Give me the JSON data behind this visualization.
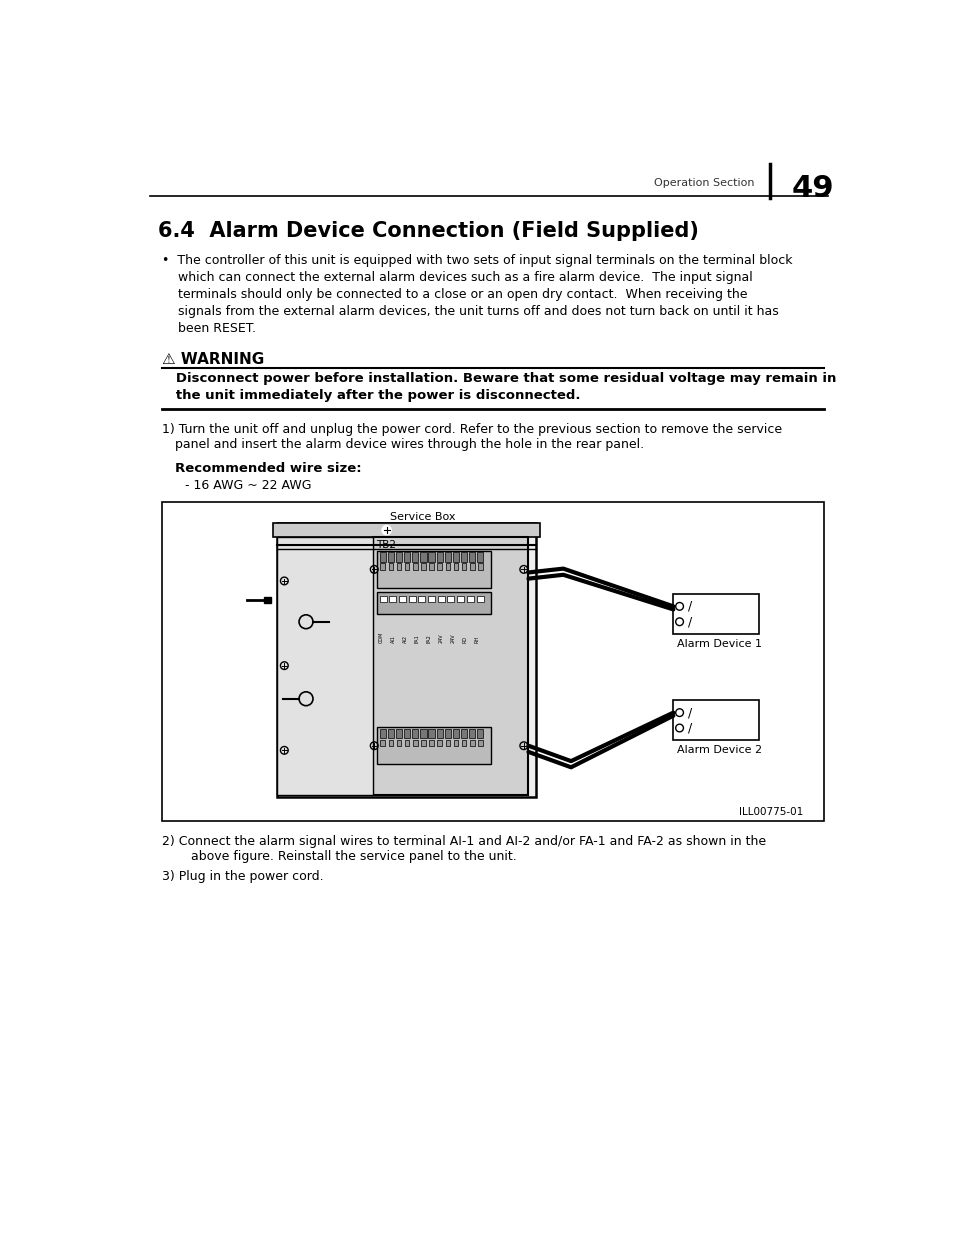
{
  "page_number": "49",
  "header_text": "Operation Section",
  "title": "6.4  Alarm Device Connection (Field Supplied)",
  "warning_label": "⚠ WARNING",
  "rec_wire_label": "Recommended wire size:",
  "rec_wire_value": "- 16 AWG ~ 22 AWG",
  "step2_text": "2) Connect the alarm signal wires to terminal AI-1 and AI-2 and/or FA-1 and FA-2 as shown in the",
  "step2b_text": "    above figure. Reinstall the service panel to the unit.",
  "step3_text": "3) Plug in the power cord.",
  "diagram_label_service_box": "Service Box",
  "diagram_label_tb2": "TB2",
  "diagram_label_alarm1": "Alarm Device 1",
  "diagram_label_alarm2": "Alarm Device 2",
  "diagram_label_ill": "ILL00775-01",
  "bg_color": "#ffffff",
  "text_color": "#000000"
}
